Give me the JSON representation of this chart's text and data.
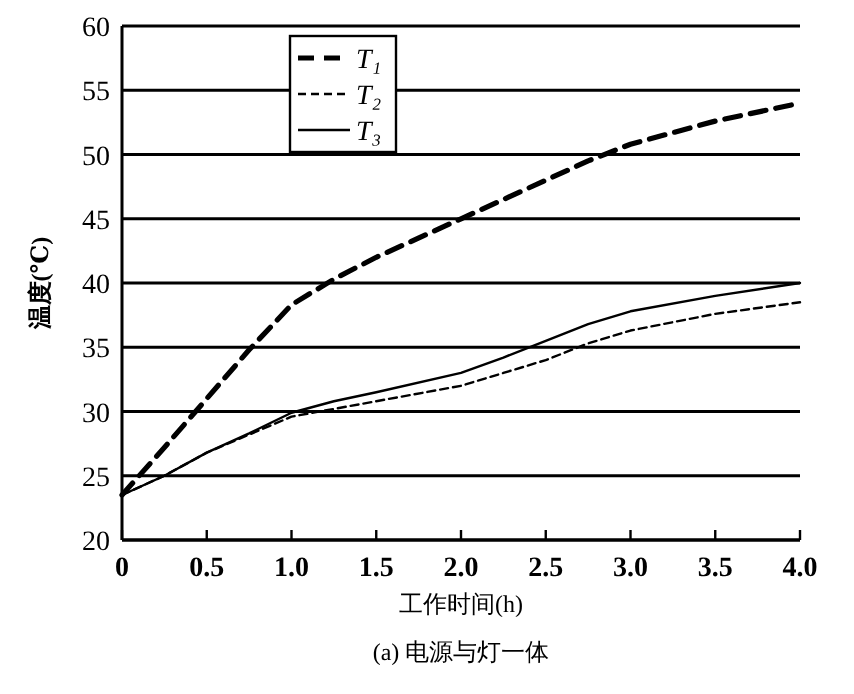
{
  "chart_data": {
    "type": "line",
    "xlabel": "工作时间(h)",
    "ylabel": "温度(℃)",
    "annotations": [
      "(a) 电源与灯一体"
    ],
    "x": [
      0,
      0.25,
      0.5,
      0.75,
      1.0,
      1.25,
      1.5,
      2.0,
      2.25,
      2.5,
      2.75,
      3.0,
      3.5,
      4.0
    ],
    "series": [
      {
        "name": "T₁",
        "color": "#000000",
        "line_style": "dashed",
        "values": [
          23.5,
          27.2,
          31,
          34.8,
          38.3,
          40.3,
          42,
          45,
          46.5,
          48,
          49.5,
          50.8,
          52.6,
          54
        ]
      },
      {
        "name": "T₂",
        "color": "#000000",
        "line_style": "dashed",
        "values": [
          23.5,
          25,
          26.8,
          28.2,
          29.6,
          30.2,
          30.8,
          32,
          33,
          34,
          35.3,
          36.3,
          37.6,
          38.5
        ]
      },
      {
        "name": "T₃",
        "color": "#000000",
        "line_style": "solid",
        "values": [
          23.5,
          25,
          26.8,
          28.3,
          29.9,
          30.8,
          31.5,
          33,
          34.2,
          35.5,
          36.8,
          37.8,
          39,
          40
        ]
      }
    ],
    "xlim": [
      0,
      4
    ],
    "xticks": [
      0,
      0.5,
      {
        "value": 1,
        "label": "1.0"
      },
      1.5,
      {
        "value": 2,
        "label": "2.0"
      },
      2.5,
      {
        "value": 3,
        "label": "3.0"
      },
      3.5,
      {
        "value": 4,
        "label": "4.0"
      }
    ],
    "ylim": [
      20,
      60
    ],
    "yticks": [
      20,
      25,
      30,
      35,
      40,
      45,
      50,
      55,
      60
    ],
    "grid": "y",
    "legend": "top left",
    "marker": "none"
  }
}
